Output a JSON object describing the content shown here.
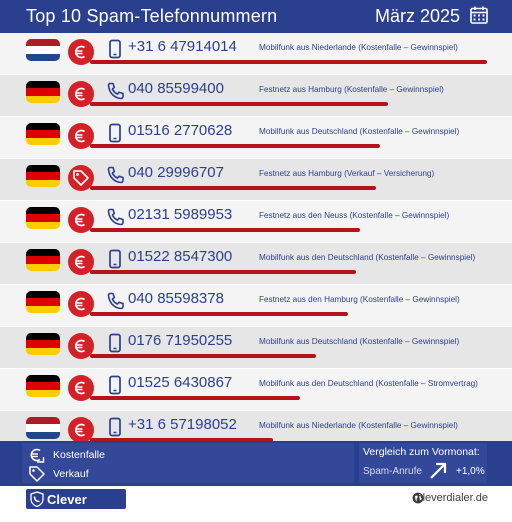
{
  "header": {
    "title": "Top 10 Spam-Telefonnummern",
    "date": "März 2025",
    "calendar_icon": "calendar-icon"
  },
  "colors": {
    "navy": "#2b3f8f",
    "red": "#d42027",
    "bar": "#b5121b"
  },
  "rows": [
    {
      "flag": "NL",
      "category": "Kostenfalle",
      "phone_type": "mobile",
      "number": "+31 6 47914014",
      "description": "Mobilfunk aus Niederlande (Kostenfalle – Gewinnspiel)",
      "bar_fraction": 1.0
    },
    {
      "flag": "DE",
      "category": "Kostenfalle",
      "phone_type": "landline",
      "number": "040 85599400",
      "description": "Festnetz aus Hamburg (Kostenfalle – Gewinnspiel)",
      "bar_fraction": 0.75
    },
    {
      "flag": "DE",
      "category": "Kostenfalle",
      "phone_type": "mobile",
      "number": "01516 2770628",
      "description": "Mobilfunk aus Deutschland (Kostenfalle – Gewinnspiel)",
      "bar_fraction": 0.73
    },
    {
      "flag": "DE",
      "category": "Verkauf",
      "phone_type": "landline",
      "number": "040 29996707",
      "description": "Festnetz aus Hamburg (Verkauf – Versicherung)",
      "bar_fraction": 0.72
    },
    {
      "flag": "DE",
      "category": "Kostenfalle",
      "phone_type": "landline",
      "number": "02131 5989953",
      "description": "Festnetz aus den Neuss (Kostenfalle – Gewinnspiel)",
      "bar_fraction": 0.68
    },
    {
      "flag": "DE",
      "category": "Kostenfalle",
      "phone_type": "mobile",
      "number": "01522 8547300",
      "description": "Mobilfunk aus den Deutschland (Kostenfalle – Gewinnspiel)",
      "bar_fraction": 0.67
    },
    {
      "flag": "DE",
      "category": "Kostenfalle",
      "phone_type": "landline",
      "number": "040 85598378",
      "description": "Festnetz aus den Hamburg (Kostenfalle – Gewinnspiel)",
      "bar_fraction": 0.65
    },
    {
      "flag": "DE",
      "category": "Kostenfalle",
      "phone_type": "mobile",
      "number": "0176 71950255",
      "description": "Mobilfunk aus Deutschland (Kostenfalle – Gewinnspiel)",
      "bar_fraction": 0.57
    },
    {
      "flag": "DE",
      "category": "Kostenfalle",
      "phone_type": "mobile",
      "number": "01525 6430867",
      "description": "Mobilfunk aus den Deutschland (Kostenfalle – Stromvertrag)",
      "bar_fraction": 0.53
    },
    {
      "flag": "NL",
      "category": "Kostenfalle",
      "phone_type": "mobile",
      "number": "+31 6 57198052",
      "description": "Mobilfunk aus Niederlande (Kostenfalle – Gewinnspiel)",
      "bar_fraction": 0.46
    }
  ],
  "legend": {
    "items": [
      {
        "icon": "euro-icon",
        "label": "Kostenfalle"
      },
      {
        "icon": "price-tag-icon",
        "label": "Verkauf"
      }
    ]
  },
  "comparison": {
    "title": "Vergleich zum Vormonat:",
    "label": "Spam-Anrufe",
    "value": "+1,0%",
    "trend_icon": "trend-up-arrow-icon"
  },
  "brand": {
    "name": "Clever Dialer",
    "website": "cleverdialer.de"
  }
}
